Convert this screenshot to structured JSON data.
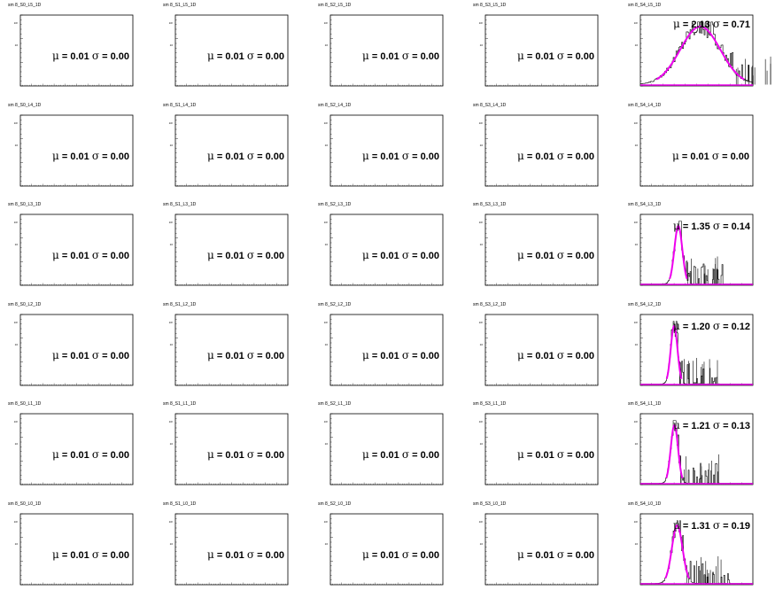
{
  "chart_data": [
    {
      "type": "histogram",
      "title": "sm 8_S0_L5_1D",
      "mean": "0.01",
      "sigma": "0.00",
      "has_data": false
    },
    {
      "type": "histogram",
      "title": "sm 8_S1_L5_1D",
      "mean": "0.01",
      "sigma": "0.00",
      "has_data": false
    },
    {
      "type": "histogram",
      "title": "sm 8_S2_L5_1D",
      "mean": "0.01",
      "sigma": "0.00",
      "has_data": false
    },
    {
      "type": "histogram",
      "title": "sm 8_S3_L5_1D",
      "mean": "0.01",
      "sigma": "0.00",
      "has_data": false
    },
    {
      "type": "histogram",
      "title": "sm 8_S4_L5_1D",
      "mean": "2.13",
      "sigma": "0.71",
      "has_data": true,
      "fit": {
        "shape": "gaussian",
        "mean": 2.13,
        "sigma": 0.71
      }
    },
    {
      "type": "histogram",
      "title": "sm 8_S0_L4_1D",
      "mean": "0.01",
      "sigma": "0.00",
      "has_data": false
    },
    {
      "type": "histogram",
      "title": "sm 8_S1_L4_1D",
      "mean": "0.01",
      "sigma": "0.00",
      "has_data": false
    },
    {
      "type": "histogram",
      "title": "sm 8_S2_L4_1D",
      "mean": "0.01",
      "sigma": "0.00",
      "has_data": false
    },
    {
      "type": "histogram",
      "title": "sm 8_S3_L4_1D",
      "mean": "0.01",
      "sigma": "0.00",
      "has_data": false
    },
    {
      "type": "histogram",
      "title": "sm 8_S4_L4_1D",
      "mean": "0.01",
      "sigma": "0.00",
      "has_data": false
    },
    {
      "type": "histogram",
      "title": "sm 8_S0_L3_1D",
      "mean": "0.01",
      "sigma": "0.00",
      "has_data": false
    },
    {
      "type": "histogram",
      "title": "sm 8_S1_L3_1D",
      "mean": "0.01",
      "sigma": "0.00",
      "has_data": false
    },
    {
      "type": "histogram",
      "title": "sm 8_S2_L3_1D",
      "mean": "0.01",
      "sigma": "0.00",
      "has_data": false
    },
    {
      "type": "histogram",
      "title": "sm 8_S3_L3_1D",
      "mean": "0.01",
      "sigma": "0.00",
      "has_data": false
    },
    {
      "type": "histogram",
      "title": "sm 8_S4_L3_1D",
      "mean": "1.35",
      "sigma": "0.14",
      "has_data": true,
      "fit": {
        "shape": "gaussian",
        "mean": 1.35,
        "sigma": 0.14
      }
    },
    {
      "type": "histogram",
      "title": "sm 8_S0_L2_1D",
      "mean": "0.01",
      "sigma": "0.00",
      "has_data": false
    },
    {
      "type": "histogram",
      "title": "sm 8_S1_L2_1D",
      "mean": "0.01",
      "sigma": "0.00",
      "has_data": false
    },
    {
      "type": "histogram",
      "title": "sm 8_S2_L2_1D",
      "mean": "0.01",
      "sigma": "0.00",
      "has_data": false
    },
    {
      "type": "histogram",
      "title": "sm 8_S3_L2_1D",
      "mean": "0.01",
      "sigma": "0.00",
      "has_data": false
    },
    {
      "type": "histogram",
      "title": "sm 8_S4_L2_1D",
      "mean": "1.20",
      "sigma": "0.12",
      "has_data": true,
      "fit": {
        "shape": "gaussian",
        "mean": 1.2,
        "sigma": 0.12
      }
    },
    {
      "type": "histogram",
      "title": "sm 8_S0_L1_1D",
      "mean": "0.01",
      "sigma": "0.00",
      "has_data": false
    },
    {
      "type": "histogram",
      "title": "sm 8_S1_L1_1D",
      "mean": "0.01",
      "sigma": "0.00",
      "has_data": false
    },
    {
      "type": "histogram",
      "title": "sm 8_S2_L1_1D",
      "mean": "0.01",
      "sigma": "0.00",
      "has_data": false
    },
    {
      "type": "histogram",
      "title": "sm 8_S3_L1_1D",
      "mean": "0.01",
      "sigma": "0.00",
      "has_data": false
    },
    {
      "type": "histogram",
      "title": "sm 8_S4_L1_1D",
      "mean": "1.21",
      "sigma": "0.13",
      "has_data": true,
      "fit": {
        "shape": "gaussian",
        "mean": 1.21,
        "sigma": 0.13
      }
    },
    {
      "type": "histogram",
      "title": "sm 8_S0_L0_1D",
      "mean": "0.01",
      "sigma": "0.00",
      "has_data": false
    },
    {
      "type": "histogram",
      "title": "sm 8_S1_L0_1D",
      "mean": "0.01",
      "sigma": "0.00",
      "has_data": false
    },
    {
      "type": "histogram",
      "title": "sm 8_S2_L0_1D",
      "mean": "0.01",
      "sigma": "0.00",
      "has_data": false
    },
    {
      "type": "histogram",
      "title": "sm 8_S3_L0_1D",
      "mean": "0.01",
      "sigma": "0.00",
      "has_data": false
    },
    {
      "type": "histogram",
      "title": "sm 8_S4_L0_1D",
      "mean": "1.31",
      "sigma": "0.19",
      "has_data": true,
      "fit": {
        "shape": "gaussian",
        "mean": 1.31,
        "sigma": 0.19
      }
    }
  ],
  "labels": {
    "mu_symbol": "μ",
    "sigma_symbol": "σ",
    "eq": "="
  },
  "colors": {
    "fit_line": "#ee00ee",
    "histogram": "#000000",
    "frame": "#000000"
  }
}
